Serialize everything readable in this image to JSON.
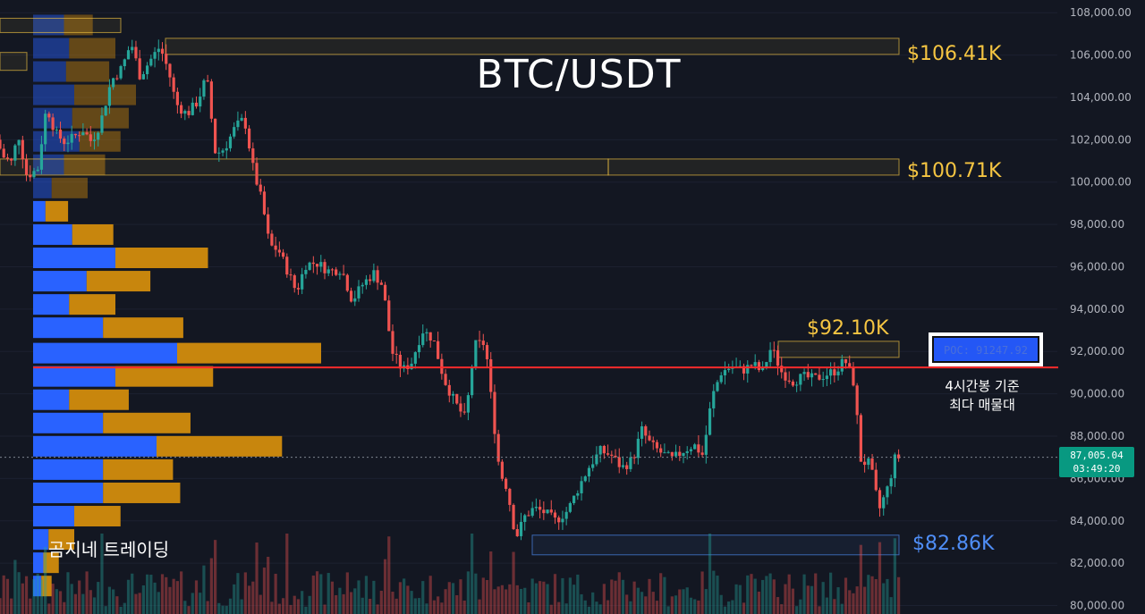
{
  "chart_data": {
    "type": "candlestick",
    "title": "BTC/USDT",
    "watermark": "곰지네 트레이딩",
    "y_axis": {
      "ylim": [
        79600,
        108600
      ],
      "ticks": [
        80000,
        82000,
        84000,
        86000,
        88000,
        90000,
        92000,
        94000,
        96000,
        98000,
        100000,
        102000,
        104000,
        106000,
        108000
      ],
      "tick_labels": [
        "80,000.00",
        "82,000.00",
        "84,000.00",
        "86,000.00",
        "88,000.00",
        "90,000.00",
        "92,000.00",
        "94,000.00",
        "96,000.00",
        "98,000.00",
        "100,000.00",
        "102,000.00",
        "104,000.00",
        "106,000.00",
        "108,000.00"
      ]
    },
    "current_price": {
      "value": 87005.04,
      "label": "87,005.04",
      "countdown": "03:49:20"
    },
    "poc": {
      "value": 91247.92,
      "label": "POC: 91247.92",
      "note_line1": "4시간봉 기준",
      "note_line2": "최다 매물대"
    },
    "levels": [
      {
        "label": "$106.41K",
        "value": 106410,
        "color": "#f5c542"
      },
      {
        "label": "$100.71K",
        "value": 100710,
        "color": "#f5c542"
      },
      {
        "label": "$92.10K",
        "value": 92100,
        "color": "#f5c542"
      },
      {
        "label": "$82.86K",
        "value": 82860,
        "color": "#4f8ef7"
      }
    ],
    "price_path": [
      {
        "t": 0,
        "p": 102000
      },
      {
        "t": 8,
        "p": 101200
      },
      {
        "t": 18,
        "p": 100900
      },
      {
        "t": 24,
        "p": 102400
      },
      {
        "t": 34,
        "p": 100300
      },
      {
        "t": 46,
        "p": 100600
      },
      {
        "t": 56,
        "p": 103600
      },
      {
        "t": 66,
        "p": 102300
      },
      {
        "t": 76,
        "p": 101900
      },
      {
        "t": 86,
        "p": 102100
      },
      {
        "t": 96,
        "p": 102500
      },
      {
        "t": 106,
        "p": 101900
      },
      {
        "t": 116,
        "p": 102800
      },
      {
        "t": 128,
        "p": 104800
      },
      {
        "t": 140,
        "p": 105400
      },
      {
        "t": 150,
        "p": 106600
      },
      {
        "t": 160,
        "p": 105000
      },
      {
        "t": 172,
        "p": 105800
      },
      {
        "t": 182,
        "p": 106400
      },
      {
        "t": 192,
        "p": 105200
      },
      {
        "t": 200,
        "p": 103700
      },
      {
        "t": 212,
        "p": 103200
      },
      {
        "t": 224,
        "p": 103800
      },
      {
        "t": 234,
        "p": 105000
      },
      {
        "t": 244,
        "p": 101300
      },
      {
        "t": 254,
        "p": 101600
      },
      {
        "t": 266,
        "p": 102600
      },
      {
        "t": 276,
        "p": 103000
      },
      {
        "t": 286,
        "p": 100600
      },
      {
        "t": 296,
        "p": 99000
      },
      {
        "t": 304,
        "p": 97000
      },
      {
        "t": 314,
        "p": 96800
      },
      {
        "t": 324,
        "p": 95800
      },
      {
        "t": 334,
        "p": 94800
      },
      {
        "t": 344,
        "p": 96100
      },
      {
        "t": 356,
        "p": 96200
      },
      {
        "t": 370,
        "p": 95800
      },
      {
        "t": 384,
        "p": 95900
      },
      {
        "t": 396,
        "p": 94400
      },
      {
        "t": 408,
        "p": 95200
      },
      {
        "t": 420,
        "p": 95700
      },
      {
        "t": 430,
        "p": 95100
      },
      {
        "t": 440,
        "p": 92000
      },
      {
        "t": 452,
        "p": 91100
      },
      {
        "t": 462,
        "p": 91500
      },
      {
        "t": 474,
        "p": 93000
      },
      {
        "t": 486,
        "p": 92600
      },
      {
        "t": 498,
        "p": 90700
      },
      {
        "t": 510,
        "p": 89600
      },
      {
        "t": 522,
        "p": 88800
      },
      {
        "t": 532,
        "p": 92300
      },
      {
        "t": 544,
        "p": 92400
      },
      {
        "t": 552,
        "p": 89200
      },
      {
        "t": 560,
        "p": 86300
      },
      {
        "t": 568,
        "p": 85600
      },
      {
        "t": 578,
        "p": 83200
      },
      {
        "t": 588,
        "p": 84200
      },
      {
        "t": 598,
        "p": 84600
      },
      {
        "t": 610,
        "p": 84400
      },
      {
        "t": 622,
        "p": 84000
      },
      {
        "t": 636,
        "p": 84500
      },
      {
        "t": 648,
        "p": 85600
      },
      {
        "t": 660,
        "p": 86600
      },
      {
        "t": 672,
        "p": 87300
      },
      {
        "t": 684,
        "p": 87100
      },
      {
        "t": 696,
        "p": 86500
      },
      {
        "t": 708,
        "p": 86900
      },
      {
        "t": 718,
        "p": 88300
      },
      {
        "t": 728,
        "p": 87600
      },
      {
        "t": 740,
        "p": 87200
      },
      {
        "t": 752,
        "p": 86900
      },
      {
        "t": 764,
        "p": 87300
      },
      {
        "t": 776,
        "p": 87600
      },
      {
        "t": 786,
        "p": 87100
      },
      {
        "t": 796,
        "p": 89800
      },
      {
        "t": 806,
        "p": 91000
      },
      {
        "t": 818,
        "p": 91300
      },
      {
        "t": 830,
        "p": 91100
      },
      {
        "t": 842,
        "p": 91400
      },
      {
        "t": 852,
        "p": 91000
      },
      {
        "t": 862,
        "p": 92200
      },
      {
        "t": 874,
        "p": 91000
      },
      {
        "t": 886,
        "p": 90600
      },
      {
        "t": 898,
        "p": 90800
      },
      {
        "t": 910,
        "p": 90700
      },
      {
        "t": 922,
        "p": 90900
      },
      {
        "t": 934,
        "p": 91100
      },
      {
        "t": 944,
        "p": 91600
      },
      {
        "t": 954,
        "p": 90500
      },
      {
        "t": 962,
        "p": 86800
      },
      {
        "t": 972,
        "p": 86700
      },
      {
        "t": 982,
        "p": 84500
      },
      {
        "t": 992,
        "p": 85600
      },
      {
        "t": 1000,
        "p": 87000
      }
    ],
    "volume_profile": [
      {
        "price": 107400,
        "buy": 0.3,
        "sell": 0.28
      },
      {
        "price": 106300,
        "buy": 0.35,
        "sell": 0.45
      },
      {
        "price": 105200,
        "buy": 0.32,
        "sell": 0.42
      },
      {
        "price": 104100,
        "buy": 0.4,
        "sell": 0.6
      },
      {
        "price": 103000,
        "buy": 0.38,
        "sell": 0.55
      },
      {
        "price": 101900,
        "buy": 0.45,
        "sell": 0.4
      },
      {
        "price": 100800,
        "buy": 0.3,
        "sell": 0.4
      },
      {
        "price": 99700,
        "buy": 0.18,
        "sell": 0.35
      },
      {
        "price": 98600,
        "buy": 0.12,
        "sell": 0.22
      },
      {
        "price": 97500,
        "buy": 0.38,
        "sell": 0.4
      },
      {
        "price": 96400,
        "buy": 0.8,
        "sell": 0.9
      },
      {
        "price": 95300,
        "buy": 0.52,
        "sell": 0.62
      },
      {
        "price": 94200,
        "buy": 0.35,
        "sell": 0.45
      },
      {
        "price": 93100,
        "buy": 0.68,
        "sell": 0.78
      },
      {
        "price": 91900,
        "buy": 1.4,
        "sell": 1.4
      },
      {
        "price": 90800,
        "buy": 0.8,
        "sell": 0.95
      },
      {
        "price": 89700,
        "buy": 0.35,
        "sell": 0.58
      },
      {
        "price": 88600,
        "buy": 0.68,
        "sell": 0.85
      },
      {
        "price": 87500,
        "buy": 1.2,
        "sell": 1.22
      },
      {
        "price": 86400,
        "buy": 0.68,
        "sell": 0.68
      },
      {
        "price": 85300,
        "buy": 0.68,
        "sell": 0.75
      },
      {
        "price": 84200,
        "buy": 0.4,
        "sell": 0.45
      },
      {
        "price": 83100,
        "buy": 0.15,
        "sell": 0.25
      },
      {
        "price": 82000,
        "buy": 0.1,
        "sell": 0.15
      },
      {
        "price": 80900,
        "buy": 0.08,
        "sell": 0.1
      }
    ]
  },
  "colors": {
    "background": "#131722",
    "up": "#26a69a",
    "down": "#ef5350",
    "poc_line": "#ff2b2b",
    "profile_buy": "#2962ff",
    "profile_sell": "#c8860d",
    "level_zone": "#f5c542",
    "support_zone": "#4f8ef7"
  }
}
